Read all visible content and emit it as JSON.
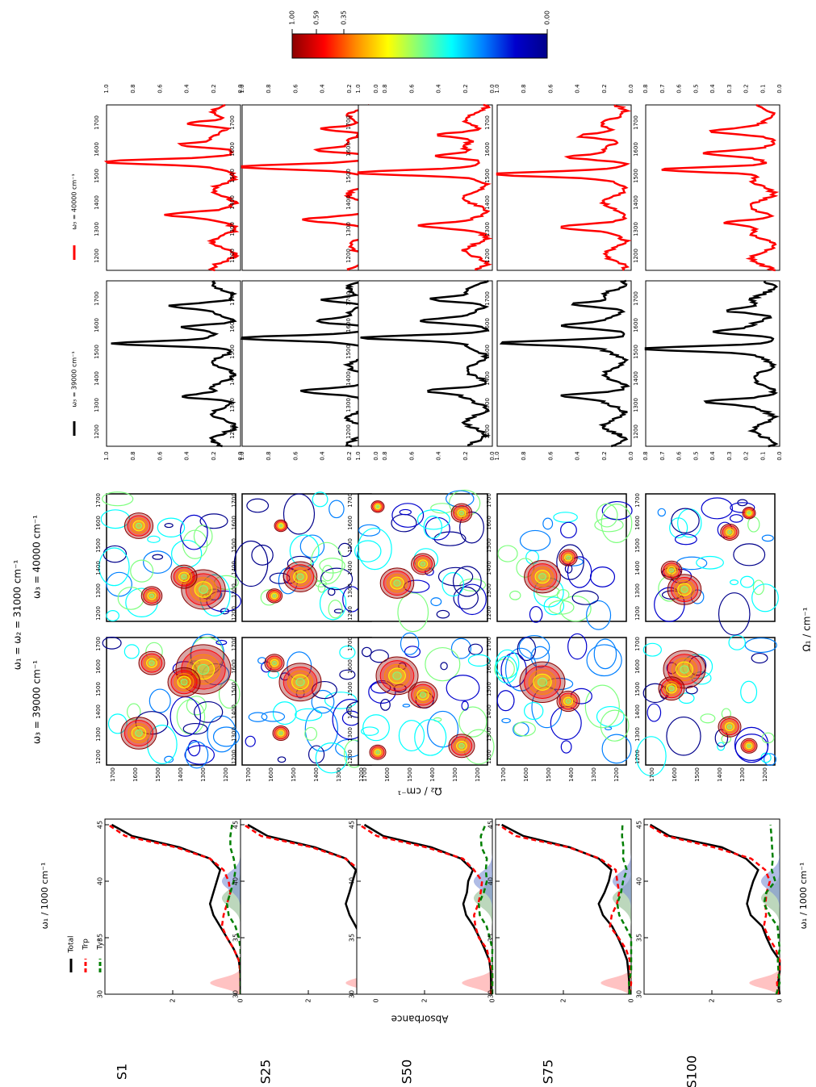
{
  "samples": [
    "S1",
    "S25",
    "S50",
    "S75",
    "S100"
  ],
  "colorbar": {
    "ticks": [
      "1.00",
      "0.59",
      "0.35",
      "0.00"
    ],
    "stops": [
      "#8b0000",
      "#ff0000",
      "#ff8c00",
      "#ffff00",
      "#7fff7f",
      "#00ffff",
      "#007fff",
      "#0000cd",
      "#00008b"
    ]
  },
  "header": {
    "top": "ω₁ = ω₂ = 31000 cm⁻¹",
    "left": "ω₃ = 39000 cm⁻¹",
    "right": "ω₃ = 40000 cm⁻¹"
  },
  "axes": {
    "absorbance_ylabel": "Absorbance",
    "absorbance_xlabel": "ω₁ / 1000 cm⁻¹",
    "absorbance_xticks": [
      "30",
      "35",
      "40",
      "45"
    ],
    "absorbance_yticks": [
      "0",
      "2"
    ],
    "map_xlabel": "Ω₁ / cm⁻¹",
    "map_ylabel": "Ω₂ / cm⁻¹",
    "map_ticks": [
      "1200",
      "1300",
      "1400",
      "1500",
      "1600",
      "1700"
    ],
    "spec_ticks": [
      "1200",
      "1300",
      "1400",
      "1500",
      "1600",
      "1700"
    ],
    "spec_yticks": [
      "0.0",
      "0.2",
      "0.4",
      "0.6",
      "0.8",
      "1.0"
    ],
    "spec_yticks_s100": [
      "0.0",
      "0.1",
      "0.2",
      "0.3",
      "0.4",
      "0.5",
      "0.6",
      "0.7",
      "0.8"
    ]
  },
  "legend": {
    "absorbance": [
      {
        "label": "Total",
        "color": "#000000",
        "dash": "solid"
      },
      {
        "label": "Trp",
        "color": "#ff0000",
        "dash": "dashed"
      },
      {
        "label": "Tyr",
        "color": "#007f00",
        "dash": "dashed"
      }
    ],
    "spec_black": "ω₃ = 39000 cm⁻¹",
    "spec_red": "ω₃ = 40000 cm⁻¹"
  },
  "chart_data": [
    {
      "type": "line",
      "name": "absorbance",
      "xlabel": "ω₁ / 1000 cm⁻¹",
      "ylabel": "Absorbance",
      "xlim": [
        30,
        45.5
      ],
      "ylim": [
        0,
        4
      ],
      "x": [
        30,
        31,
        32,
        33,
        34,
        35,
        36,
        37,
        38,
        39,
        40,
        41,
        42,
        43,
        44,
        45
      ],
      "series": [
        {
          "name": "Total",
          "values": [
            0,
            0,
            0.01,
            0.05,
            0.2,
            0.4,
            0.6,
            0.8,
            0.9,
            0.8,
            0.7,
            0.6,
            0.9,
            1.8,
            3.2,
            3.8
          ]
        },
        {
          "name": "Trp",
          "values": [
            0,
            0,
            0.01,
            0.05,
            0.2,
            0.4,
            0.55,
            0.5,
            0.4,
            0.3,
            0.35,
            0.5,
            0.9,
            1.9,
            3.4,
            3.9
          ]
        },
        {
          "name": "Tyr",
          "values": [
            0,
            0,
            0,
            0,
            0,
            0.05,
            0.15,
            0.35,
            0.4,
            0.3,
            0.2,
            0.15,
            0.2,
            0.3,
            0.3,
            0.25
          ]
        }
      ],
      "shaded_bands": [
        {
          "center": 31,
          "color": "#ff9999"
        },
        {
          "center": 38.5,
          "color": "#8fbc8f"
        },
        {
          "center": 40,
          "color": "#7b8fd4"
        }
      ]
    },
    {
      "type": "line",
      "name": "normalized spectra",
      "xlim": [
        1150,
        1750
      ],
      "ylim": [
        0,
        1
      ],
      "x": [
        1150,
        1200,
        1250,
        1300,
        1350,
        1400,
        1450,
        1500,
        1550,
        1600,
        1650,
        1700,
        1750
      ],
      "series": [
        {
          "name": "ω₃ = 39000 cm⁻¹",
          "values": [
            0.1,
            0.2,
            0.5,
            0.3,
            0.2,
            0.05,
            0.2,
            0.9,
            0.6,
            0.3,
            0.1,
            0.15,
            0.05
          ]
        },
        {
          "name": "ω₃ = 40000 cm⁻¹",
          "values": [
            0.05,
            0.3,
            0.6,
            0.2,
            0.1,
            0.05,
            0.2,
            0.8,
            1.0,
            0.5,
            0.2,
            0.1,
            0.05
          ]
        }
      ]
    }
  ]
}
